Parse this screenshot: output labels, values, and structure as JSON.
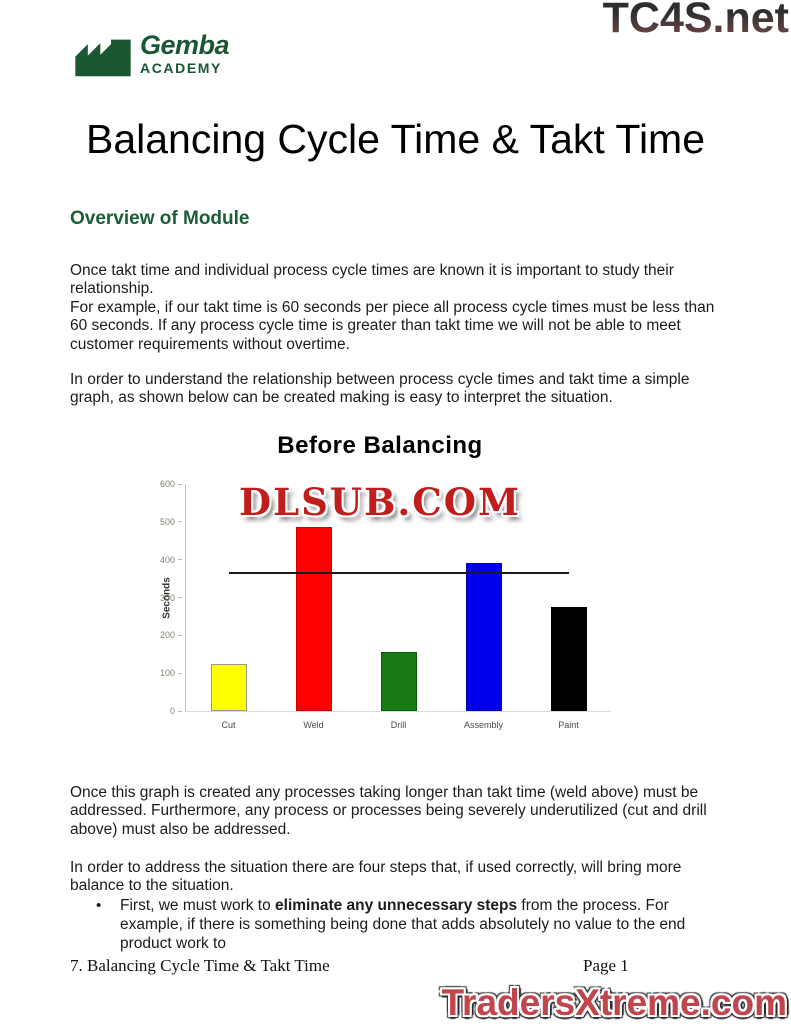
{
  "logo": {
    "name": "Gemba",
    "subname": "ACADEMY",
    "color": "#1a5733"
  },
  "watermarks": {
    "top_right": "TC4S.net",
    "chart_overlay": "DLSUB.COM",
    "bottom_right": "TradersXtreme.com"
  },
  "title": "Balancing Cycle Time & Takt Time",
  "section_heading": "Overview of Module",
  "paragraphs": [
    "Once takt time and individual process cycle times are known it is important to study their relationship.",
    "For example, if our takt time is 60 seconds per piece all process cycle times must be less than 60 seconds.  If any process cycle time is greater than takt time we will not be able to meet customer requirements without overtime.",
    "In order to understand the relationship between process cycle times and takt time a simple graph, as shown below can be created making is easy to interpret the situation.",
    "Once this graph is created any processes taking longer than takt time (weld above) must be addressed.  Furthermore, any process or processes being severely underutilized (cut and drill above) must also be addressed.",
    "In order to address the situation there are four steps that, if used correctly, will bring more balance to the situation."
  ],
  "bullet": {
    "marker": "•",
    "pre": "First, we must work to ",
    "bold": "eliminate any unnecessary steps",
    "post": " from the process.  For example, if there is something being done that adds absolutely no value to the end product work to"
  },
  "footer": {
    "left": "7. Balancing Cycle Time & Takt Time",
    "right": "Page 1"
  },
  "colors": {
    "brand_green": "#1a5733",
    "heading_green": "#1b5e36",
    "watermark_red": "#c11d1d",
    "takt_line": "#1a1a1a"
  },
  "chart_data": {
    "type": "bar",
    "title": "Before Balancing",
    "ylabel": "Seconds",
    "xlabel": "",
    "categories": [
      "Cut",
      "Weld",
      "Drill",
      "Assembly",
      "Paint"
    ],
    "values": [
      120,
      480,
      150,
      385,
      270
    ],
    "bar_colors": [
      "#ffff00",
      "#ff0000",
      "#177a17",
      "#0000ee",
      "#000000"
    ],
    "bar_borders": [
      "#999988",
      "#cc0000",
      "#0c5c0c",
      "#0000aa",
      "#000000"
    ],
    "takt_line_value": 365,
    "ylim": [
      0,
      600
    ],
    "yticks": [
      0,
      100,
      200,
      300,
      400,
      500,
      600
    ],
    "grid": false,
    "legend": "none"
  }
}
